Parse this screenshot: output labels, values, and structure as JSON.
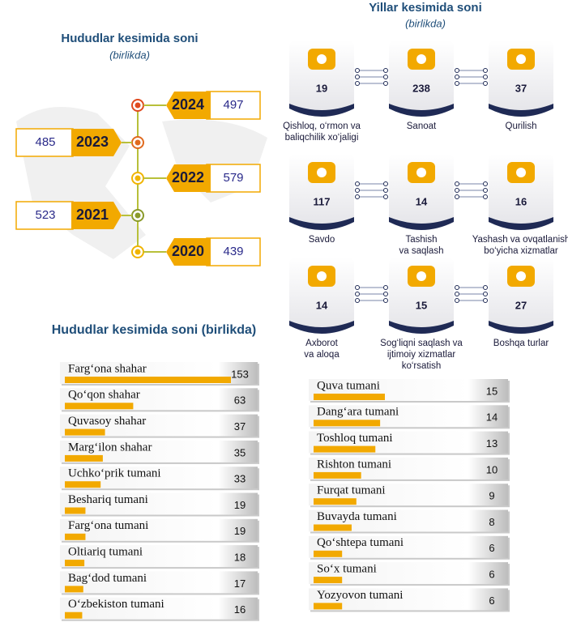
{
  "years_panel": {
    "title": "Hududlar kesimida soni",
    "subtitle": "(birlikda)",
    "items": [
      {
        "year": "2024",
        "value": 497
      },
      {
        "year": "2023",
        "value": 485
      },
      {
        "year": "2022",
        "value": 579
      },
      {
        "year": "2021",
        "value": 523
      },
      {
        "year": "2020",
        "value": 439
      }
    ]
  },
  "sectors_panel": {
    "title": "Yillar kesimida soni",
    "subtitle": "(birlikda)",
    "items": [
      {
        "label": [
          "Qishloq, o‘rmon va",
          "baliqchilik xo‘jaligi"
        ],
        "value": 19
      },
      {
        "label": [
          "Sanoat"
        ],
        "value": 238
      },
      {
        "label": [
          "Qurilish"
        ],
        "value": 37
      },
      {
        "label": [
          "Savdo"
        ],
        "value": 117
      },
      {
        "label": [
          "Tashish",
          "va saqlash"
        ],
        "value": 14
      },
      {
        "label": [
          "Yashash va ovqatlanish",
          "bo‘yicha xizmatlar"
        ],
        "value": 16
      },
      {
        "label": [
          "Axborot",
          "va aloqa"
        ],
        "value": 14
      },
      {
        "label": [
          "Sog‘liqni saqlash va",
          "ijtimoiy xizmatlar",
          "ko‘rsatish"
        ],
        "value": 15
      },
      {
        "label": [
          "Boshqa turlar"
        ],
        "value": 27
      }
    ]
  },
  "regions": {
    "title": "Hududlar kesimida soni (birlikda)",
    "color": "#f2a900",
    "left": [
      {
        "name": "Farg‘ona shahar",
        "value": 153
      },
      {
        "name": "Qo‘qon shahar",
        "value": 63
      },
      {
        "name": "Quvasoy shahar",
        "value": 37
      },
      {
        "name": "Marg‘ilon shahar",
        "value": 35
      },
      {
        "name": "Uchko‘prik tumani",
        "value": 33
      },
      {
        "name": "Beshariq tumani",
        "value": 19
      },
      {
        "name": "Farg‘ona tumani",
        "value": 19
      },
      {
        "name": "Oltiariq tumani",
        "value": 18
      },
      {
        "name": "Bag‘dod tumani",
        "value": 17
      },
      {
        "name": "O‘zbekiston tumani",
        "value": 16
      }
    ],
    "right": [
      {
        "name": "Quva tumani",
        "value": 15
      },
      {
        "name": "Dang‘ara tumani",
        "value": 14
      },
      {
        "name": "Toshloq tumani",
        "value": 13
      },
      {
        "name": "Rishton tumani",
        "value": 10
      },
      {
        "name": "Furqat tumani",
        "value": 9
      },
      {
        "name": "Buvayda tumani",
        "value": 8
      },
      {
        "name": "Qo‘shtepa tumani",
        "value": 6
      },
      {
        "name": "So‘x tumani",
        "value": 6
      },
      {
        "name": "Yozyovon tumani",
        "value": 6
      }
    ]
  }
}
